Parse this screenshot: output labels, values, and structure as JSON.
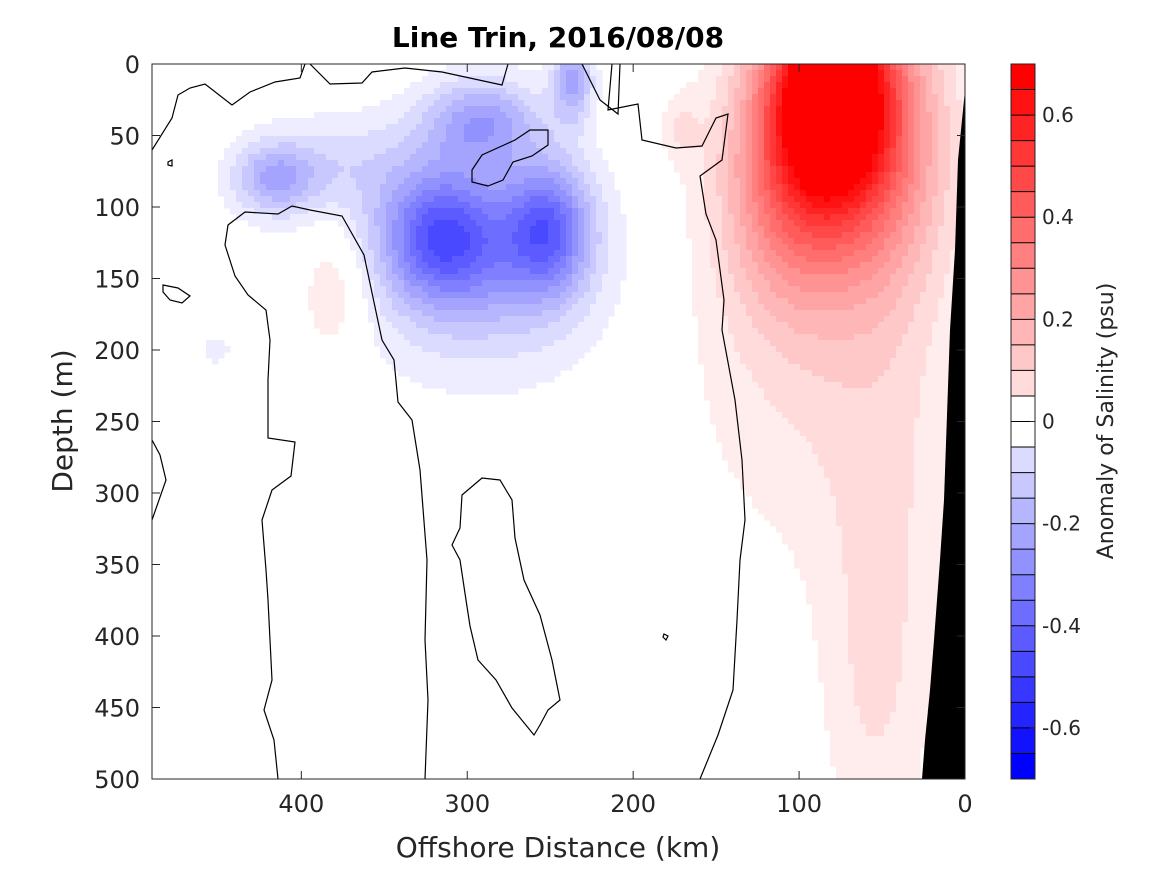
{
  "chart_data": {
    "type": "heatmap",
    "title": "Line Trin, 2016/08/08",
    "xlabel": "Offshore Distance (km)",
    "ylabel": "Depth (m)",
    "colorbar_label": "Anomaly of Salinity (psu)",
    "xlim": [
      490,
      0
    ],
    "ylim": [
      0,
      500
    ],
    "x_reversed": true,
    "y_reversed": true,
    "x_ticks": [
      400,
      300,
      200,
      100,
      0
    ],
    "y_ticks": [
      0,
      50,
      100,
      150,
      200,
      250,
      300,
      350,
      400,
      450,
      500
    ],
    "clim": [
      -0.7,
      0.7
    ],
    "colorbar_ticks": [
      0.6,
      0.4,
      0.2,
      0,
      -0.2,
      -0.4,
      -0.6
    ],
    "contour_interval": 0.05,
    "colormap": {
      "negative": "#0000ff",
      "zero": "#ffffff",
      "positive": "#ff0000"
    },
    "bathymetry_color": "#000000",
    "features": [
      {
        "label": "surface max",
        "distance_km": 85,
        "depth_m": 10,
        "anomaly": 0.7
      },
      {
        "label": "subsurface min",
        "distance_km": 320,
        "depth_m": 120,
        "anomaly": -0.35
      },
      {
        "label": "subsurface min",
        "distance_km": 255,
        "depth_m": 115,
        "anomaly": -0.35
      },
      {
        "label": "upper min",
        "distance_km": 290,
        "depth_m": 40,
        "anomaly": -0.25
      },
      {
        "label": "upper min",
        "distance_km": 420,
        "depth_m": 80,
        "anomaly": -0.22
      },
      {
        "label": "surface min",
        "distance_km": 240,
        "depth_m": 10,
        "anomaly": -0.25
      },
      {
        "label": "positive lens",
        "distance_km": 385,
        "depth_m": 160,
        "anomaly": 0.12
      },
      {
        "label": "coastal positive",
        "distance_km": 45,
        "depth_m": 300,
        "anomaly": 0.08
      }
    ],
    "grid": false
  }
}
